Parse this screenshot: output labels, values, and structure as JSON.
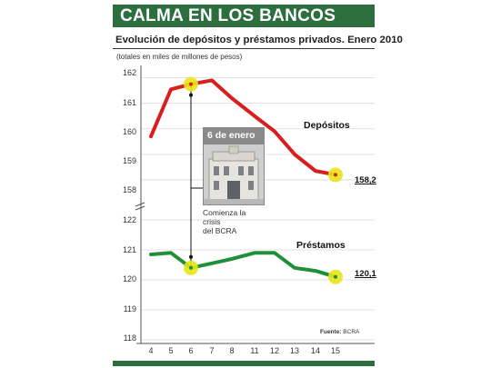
{
  "banner": {
    "title": "CALMA EN LOS BANCOS"
  },
  "header": {
    "subtitle": "Evolución de depósitos y préstamos privados. Enero 2010",
    "note": "(totales en miles de millones de pesos)"
  },
  "annotation": {
    "date": "6 de enero",
    "text_line1": "Comienza la crisis",
    "text_line2": "del BCRA"
  },
  "source": {
    "label": "Fuente:",
    "value": "BCRA"
  },
  "colors": {
    "depositos": "#d81e1e",
    "prestamos": "#1f8f3a",
    "highlight": "#e8e617",
    "banner": "#2d6e3f"
  },
  "chart_data": {
    "type": "line",
    "categories": [
      "4",
      "5",
      "6",
      "7",
      "8",
      "11",
      "12",
      "13",
      "14",
      "15"
    ],
    "axis_breaks": "y-axis broken between 122 and 158",
    "series": [
      {
        "name": "Depósitos",
        "values": [
          159.7,
          161.55,
          161.75,
          161.9,
          161.2,
          160.5,
          159.9,
          159.0,
          158.35,
          158.2
        ],
        "end_label": "158,2",
        "ylim": [
          157.5,
          162.2
        ],
        "yticks": [
          "162",
          "161",
          "160",
          "159",
          "158"
        ]
      },
      {
        "name": "Préstamos",
        "values": [
          120.85,
          120.9,
          120.4,
          120.55,
          120.7,
          120.9,
          120.9,
          120.4,
          120.3,
          120.1
        ],
        "end_label": "120,1",
        "ylim": [
          118,
          122
        ],
        "yticks": [
          "122",
          "121",
          "120",
          "119",
          "118"
        ]
      }
    ],
    "highlights": [
      {
        "series": "Depósitos",
        "category": "6"
      },
      {
        "series": "Depósitos",
        "category": "15"
      },
      {
        "series": "Préstamos",
        "category": "6"
      },
      {
        "series": "Préstamos",
        "category": "15"
      }
    ]
  }
}
